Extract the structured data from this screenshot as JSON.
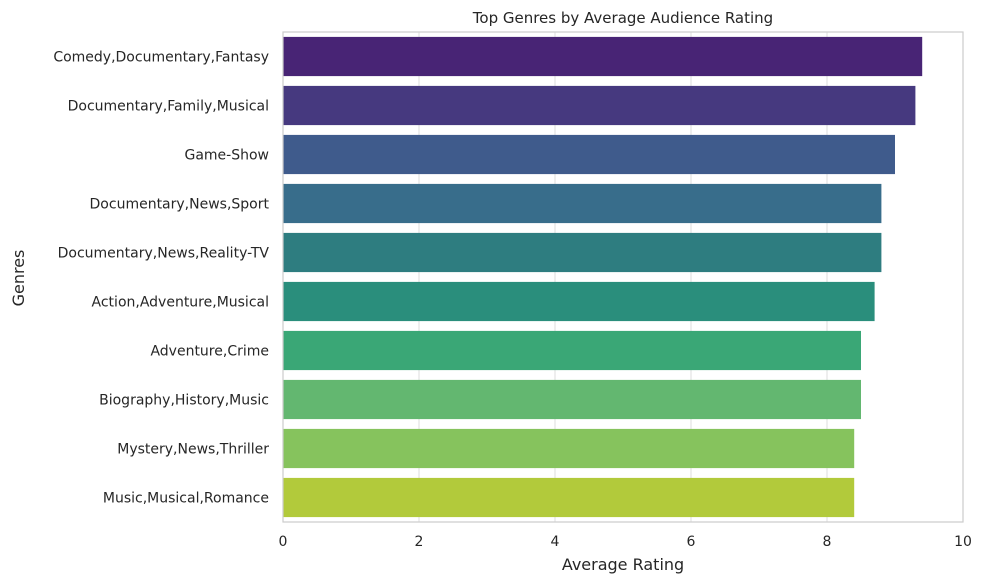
{
  "chart_data": {
    "type": "bar",
    "orientation": "horizontal",
    "title": "Top Genres by Average Audience Rating",
    "xlabel": "Average Rating",
    "ylabel": "Genres",
    "xlim": [
      0,
      10
    ],
    "xticks": [
      "0",
      "2",
      "4",
      "6",
      "8",
      "10"
    ],
    "grid": "vertical",
    "categories": [
      "Comedy,Documentary,Fantasy",
      "Documentary,Family,Musical",
      "Game-Show",
      "Documentary,News,Sport",
      "Documentary,News,Reality-TV",
      "Action,Adventure,Musical",
      "Adventure,Crime",
      "Biography,History,Music",
      "Mystery,News,Thriller",
      "Music,Musical,Romance"
    ],
    "values": [
      9.4,
      9.3,
      9.0,
      8.8,
      8.8,
      8.7,
      8.5,
      8.5,
      8.4,
      8.4
    ],
    "colors": [
      "#482475",
      "#46397f",
      "#3f5b8c",
      "#386d8b",
      "#2e7d80",
      "#2a8e7c",
      "#3aa776",
      "#63b770",
      "#86c35d",
      "#b2ca3b"
    ]
  }
}
